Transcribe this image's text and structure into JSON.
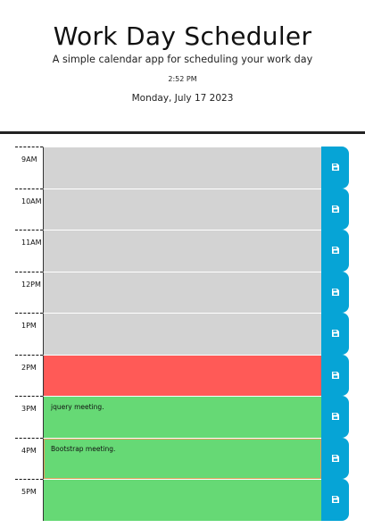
{
  "header": {
    "title": "Work Day Scheduler",
    "subtitle": "A simple calendar app for scheduling your work day",
    "time": "2:52 PM",
    "date": "Monday, July 17 2023"
  },
  "colors": {
    "past": "#d3d3d3",
    "present": "#ff5a57",
    "future": "#66d975",
    "save": "#06a4d6"
  },
  "rows": [
    {
      "hour": "9AM",
      "text": "",
      "status": "past",
      "icon": "save-icon"
    },
    {
      "hour": "10AM",
      "text": "",
      "status": "past",
      "icon": "save-icon"
    },
    {
      "hour": "11AM",
      "text": "",
      "status": "past",
      "icon": "save-icon"
    },
    {
      "hour": "12PM",
      "text": "",
      "status": "past",
      "icon": "save-icon"
    },
    {
      "hour": "1PM",
      "text": "",
      "status": "past",
      "icon": "save-icon"
    },
    {
      "hour": "2PM",
      "text": "",
      "status": "present",
      "icon": "save-icon"
    },
    {
      "hour": "3PM",
      "text": "jquery meeting.",
      "status": "future",
      "icon": "save-icon"
    },
    {
      "hour": "4PM",
      "text": "Bootstrap meeting.",
      "status": "future",
      "icon": "save-icon"
    },
    {
      "hour": "5PM",
      "text": "",
      "status": "future",
      "icon": "save-icon"
    }
  ]
}
